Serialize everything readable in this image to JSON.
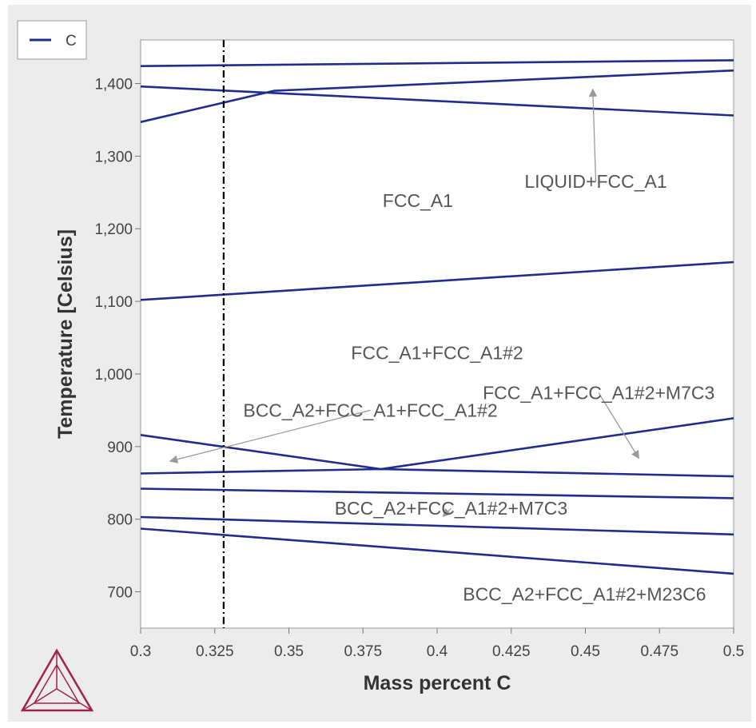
{
  "chart_data": {
    "type": "line",
    "xlabel": "Mass percent C",
    "ylabel": "Temperature [Celsius]",
    "xlim": [
      0.3,
      0.5
    ],
    "ylim": [
      650,
      1460
    ],
    "xticks": [
      "0.3",
      "0.325",
      "0.35",
      "0.375",
      "0.4",
      "0.425",
      "0.45",
      "0.475",
      "0.5"
    ],
    "yticks": [
      "700",
      "800",
      "900",
      "1,000",
      "1,100",
      "1,200",
      "1,300",
      "1,400"
    ],
    "grid": false,
    "legend": {
      "position": "top-left",
      "entries": [
        "C"
      ]
    },
    "marker_line": {
      "x": 0.328,
      "style": "dash-dot"
    },
    "series": [
      {
        "values": [
          [
            0.3,
            1424
          ],
          [
            0.5,
            1432
          ]
        ]
      },
      {
        "values": [
          [
            0.3,
            1347
          ],
          [
            0.345,
            1390
          ],
          [
            0.5,
            1418
          ]
        ]
      },
      {
        "values": [
          [
            0.3,
            1396
          ],
          [
            0.5,
            1356
          ]
        ]
      },
      {
        "values": [
          [
            0.3,
            1102
          ],
          [
            0.5,
            1154
          ]
        ]
      },
      {
        "values": [
          [
            0.3,
            916
          ],
          [
            0.381,
            869
          ]
        ]
      },
      {
        "values": [
          [
            0.3,
            863
          ],
          [
            0.381,
            869
          ],
          [
            0.5,
            859
          ]
        ]
      },
      {
        "values": [
          [
            0.381,
            869
          ],
          [
            0.5,
            939
          ]
        ]
      },
      {
        "values": [
          [
            0.3,
            842
          ],
          [
            0.5,
            829
          ]
        ]
      },
      {
        "values": [
          [
            0.3,
            803
          ],
          [
            0.5,
            779
          ]
        ]
      },
      {
        "values": [
          [
            0.3,
            787
          ],
          [
            0.5,
            725
          ]
        ]
      }
    ],
    "annotations": [
      {
        "text": "FCC_A1",
        "x": 0.3935,
        "y": 1239
      },
      {
        "text": "LIQUID+FCC_A1",
        "x": 0.4535,
        "y": 1265,
        "arrow_to": [
          0.4525,
          1392
        ]
      },
      {
        "text": "FCC_A1+FCC_A1#2",
        "x": 0.4,
        "y": 1029
      },
      {
        "text": "FCC_A1+FCC_A1#2+M7C3",
        "x": 0.4545,
        "y": 974,
        "arrow_to": [
          0.468,
          884
        ]
      },
      {
        "text": "BCC_A2+FCC_A1+FCC_A1#2",
        "x": 0.3775,
        "y": 950,
        "arrow_to": [
          0.31,
          880
        ]
      },
      {
        "text": "BCC_A2+FCC_A1#2+M7C3",
        "x": 0.4047,
        "y": 815,
        "arrow_to": [
          0.402,
          804
        ]
      },
      {
        "text": "BCC_A2+FCC_A1#2+M23C6",
        "x": 0.4497,
        "y": 697
      }
    ]
  }
}
